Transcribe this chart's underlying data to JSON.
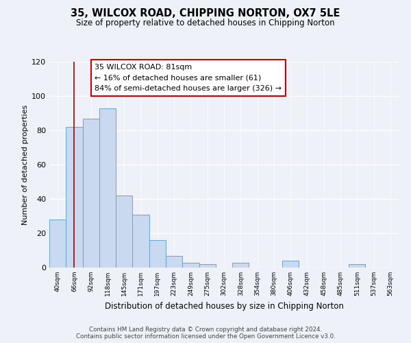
{
  "title": "35, WILCOX ROAD, CHIPPING NORTON, OX7 5LE",
  "subtitle": "Size of property relative to detached houses in Chipping Norton",
  "xlabel": "Distribution of detached houses by size in Chipping Norton",
  "ylabel": "Number of detached properties",
  "bins": [
    "40sqm",
    "66sqm",
    "92sqm",
    "118sqm",
    "145sqm",
    "171sqm",
    "197sqm",
    "223sqm",
    "249sqm",
    "275sqm",
    "302sqm",
    "328sqm",
    "354sqm",
    "380sqm",
    "406sqm",
    "432sqm",
    "458sqm",
    "485sqm",
    "511sqm",
    "537sqm",
    "563sqm"
  ],
  "values": [
    28,
    82,
    87,
    93,
    42,
    31,
    16,
    7,
    3,
    2,
    0,
    3,
    0,
    0,
    4,
    0,
    0,
    0,
    2,
    0,
    0
  ],
  "bar_color": "#c8d9f0",
  "bar_edge_color": "#6ba3cc",
  "vline_x_index": 1,
  "vline_color": "#aa0000",
  "ylim": [
    0,
    120
  ],
  "yticks": [
    0,
    20,
    40,
    60,
    80,
    100,
    120
  ],
  "annotation_line1": "35 WILCOX ROAD: 81sqm",
  "annotation_line2": "← 16% of detached houses are smaller (61)",
  "annotation_line3": "84% of semi-detached houses are larger (326) →",
  "annotation_box_facecolor": "#ffffff",
  "annotation_box_edgecolor": "#cc0000",
  "footnote1": "Contains HM Land Registry data © Crown copyright and database right 2024.",
  "footnote2": "Contains public sector information licensed under the Open Government Licence v3.0.",
  "background_color": "#eef2f8"
}
